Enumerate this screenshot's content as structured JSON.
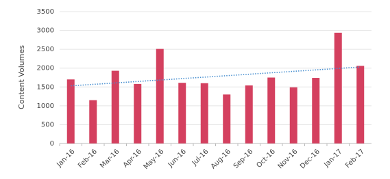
{
  "chart_data": {
    "type": "bar",
    "y_label": "Content Volumes",
    "categories": [
      "Jan-16",
      "Feb-16",
      "Mar-16",
      "Apr-16",
      "May-16",
      "Jun-16",
      "Jul-16",
      "Aug-16",
      "Sep-16",
      "Oct-16",
      "Nov-16",
      "Dec-16",
      "Jan-17",
      "Feb-17"
    ],
    "values": [
      1700,
      1150,
      1930,
      1580,
      2510,
      1610,
      1600,
      1300,
      1540,
      1750,
      1490,
      1740,
      2940,
      2060
    ],
    "color": "#d4405f",
    "trendline": {
      "start": 1530,
      "end": 2030,
      "color": "#4a90d0"
    },
    "ylim": [
      0,
      3500
    ],
    "yticks": [
      0,
      500,
      1000,
      1500,
      2000,
      2500,
      3000,
      3500
    ],
    "grid": true
  }
}
